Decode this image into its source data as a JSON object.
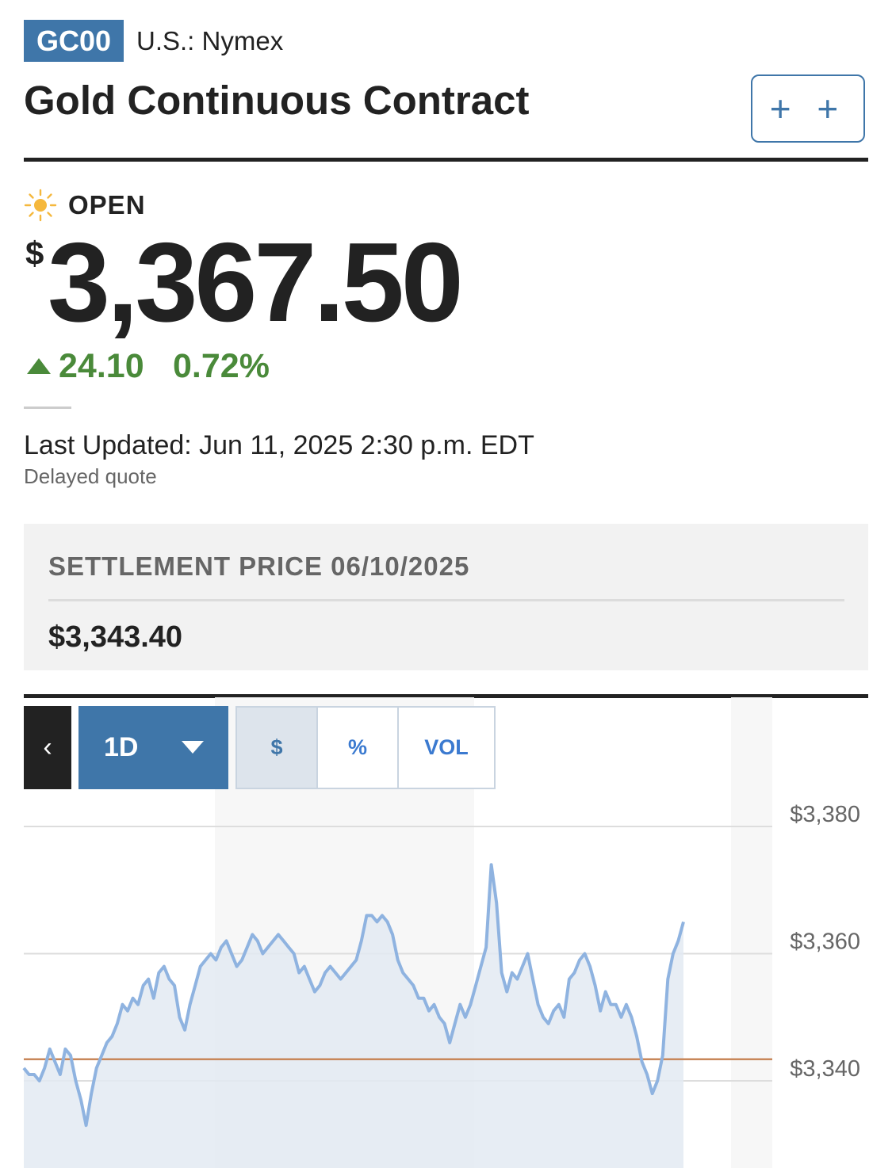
{
  "header": {
    "ticker": "GC00",
    "exchange": "U.S.: Nymex",
    "title": "Gold Continuous Contract",
    "watch_label": "+ +"
  },
  "quote": {
    "status": "OPEN",
    "status_icon": "sun-icon",
    "currency_symbol": "$",
    "price": "3,367.50",
    "change": "24.10",
    "change_pct": "0.72%",
    "direction_icon": "up-triangle-icon",
    "change_color": "#4a8a3a",
    "last_updated": "Last Updated: Jun 11, 2025 2:30 p.m. EDT",
    "delay_note": "Delayed quote"
  },
  "settlement": {
    "label": "SETTLEMENT PRICE 06/10/2025",
    "value": "$3,343.40"
  },
  "chart_controls": {
    "back_icon": "chevron-left-icon",
    "range": "1D",
    "range_icon": "caret-down-icon",
    "modes": [
      "$",
      "%",
      "VOL"
    ],
    "active_mode": "$"
  },
  "chart_data": {
    "type": "line",
    "series": [
      {
        "values": [
          3342,
          3341,
          3341,
          3340,
          3342,
          3345,
          3343,
          3341,
          3345,
          3344,
          3340,
          3337,
          3333,
          3338,
          3342,
          3344,
          3346,
          3347,
          3349,
          3352,
          3351,
          3353,
          3352,
          3355,
          3356,
          3353,
          3357,
          3358,
          3356,
          3355,
          3350,
          3348,
          3352,
          3355,
          3358,
          3359,
          3360,
          3359,
          3361,
          3362,
          3360,
          3358,
          3359,
          3361,
          3363,
          3362,
          3360,
          3361,
          3362,
          3363,
          3362,
          3361,
          3360,
          3357,
          3358,
          3356,
          3354,
          3355,
          3357,
          3358,
          3357,
          3356,
          3357,
          3358,
          3359,
          3362,
          3366,
          3366,
          3365,
          3366,
          3365,
          3363,
          3359,
          3357,
          3356,
          3355,
          3353,
          3353,
          3351,
          3352,
          3350,
          3349,
          3346,
          3349,
          3352,
          3350,
          3352,
          3355,
          3358,
          3361,
          3374,
          3368,
          3357,
          3354,
          3357,
          3356,
          3358,
          3360,
          3356,
          3352,
          3350,
          3349,
          3351,
          3352,
          3350,
          3356,
          3357,
          3359,
          3360,
          3358,
          3355,
          3351,
          3354,
          3352,
          3352,
          3350,
          3352,
          3350,
          3347,
          3343,
          3341,
          3338,
          3340,
          3344,
          3356,
          3360,
          3362,
          3365
        ]
      }
    ],
    "reference_line": {
      "label": "settlement",
      "value": 3343.4,
      "color": "#c8875a"
    },
    "y_ticks": [
      "$3,380",
      "$3,360",
      "$3,340"
    ],
    "y_tick_values": [
      3380,
      3360,
      3340
    ],
    "ylim": [
      3326,
      3381
    ],
    "line_color": "#8fb3e0",
    "fill_color": "#e3eaf2"
  }
}
